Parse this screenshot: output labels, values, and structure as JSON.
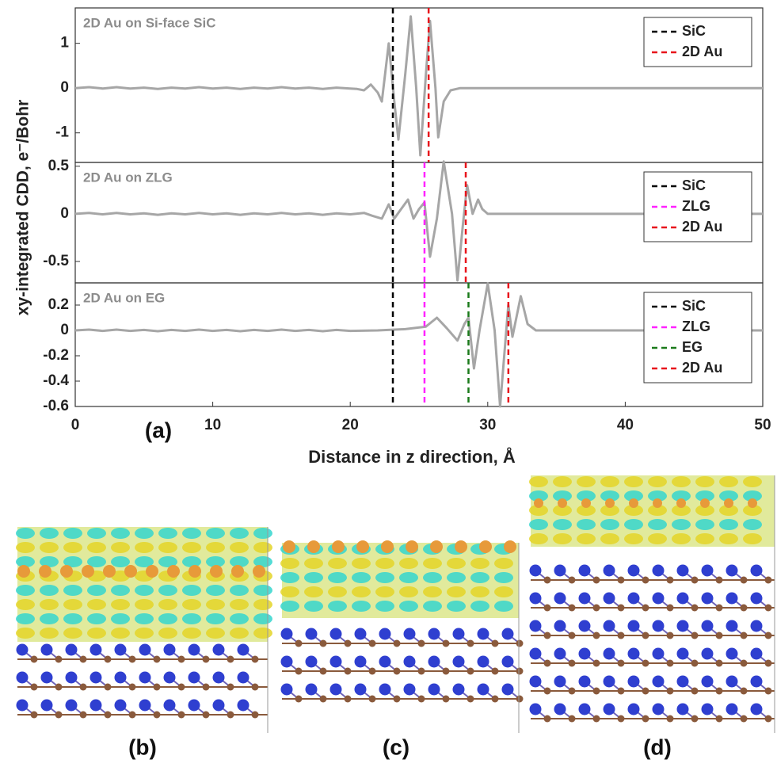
{
  "chart_data": [
    {
      "type": "line",
      "annotation": "2D Au on Si-face SiC",
      "legend": "upper right",
      "xlim": [
        0,
        50
      ],
      "ylim": [
        -1.66,
        1.79
      ],
      "yticks": [
        -1,
        0,
        1
      ],
      "x": [
        0,
        1,
        2,
        3,
        4,
        5,
        6,
        7,
        8,
        9,
        10,
        11,
        12,
        13,
        14,
        15,
        16,
        17,
        18,
        19,
        20,
        20.5,
        21,
        21.5,
        22,
        22.3,
        22.8,
        23.2,
        23.5,
        24,
        24.4,
        24.8,
        25.1,
        25.5,
        25.8,
        26.2,
        26.4,
        26.8,
        27.3,
        28,
        30,
        35,
        40,
        45,
        50
      ],
      "series": [
        {
          "color": "#a6a6a6",
          "values": [
            0,
            0.02,
            -0.01,
            0.02,
            -0.01,
            0.01,
            -0.02,
            0.01,
            -0.01,
            0.02,
            -0.01,
            0.01,
            -0.02,
            0.01,
            -0.01,
            0.02,
            -0.01,
            0.01,
            -0.02,
            0.01,
            -0.01,
            -0.02,
            -0.05,
            0.08,
            -0.1,
            -0.3,
            1.0,
            -0.3,
            -1.15,
            0.3,
            1.6,
            0,
            -1.5,
            0.3,
            1.5,
            0,
            -1.1,
            -0.3,
            -0.05,
            0,
            0,
            0,
            0,
            0,
            0
          ]
        }
      ],
      "vlines": [
        {
          "name": "SiC",
          "color": "#000000",
          "x": 23.1
        },
        {
          "name": "2D Au",
          "color": "#e8141c",
          "x": 25.7
        }
      ]
    },
    {
      "type": "line",
      "annotation": "2D Au on ZLG",
      "legend": "upper right",
      "xlim": [
        0,
        50
      ],
      "ylim": [
        -0.725,
        0.54
      ],
      "yticks": [
        -0.5,
        0,
        0.5
      ],
      "ylabel": "xy-integrated CDD, e⁻/Bohr",
      "x": [
        0,
        1,
        2,
        3,
        4,
        5,
        6,
        7,
        8,
        9,
        10,
        11,
        12,
        13,
        14,
        15,
        16,
        17,
        18,
        19,
        20,
        21,
        21.6,
        22.3,
        22.8,
        23.2,
        23.7,
        24.2,
        24.6,
        25,
        25.4,
        25.8,
        26.3,
        26.8,
        27.4,
        27.8,
        28.2,
        28.5,
        28.9,
        29.3,
        29.6,
        30,
        35,
        40,
        45,
        50
      ],
      "series": [
        {
          "color": "#a6a6a6",
          "values": [
            0,
            0.01,
            -0.005,
            0.01,
            -0.005,
            0.005,
            -0.01,
            0.005,
            -0.005,
            0.01,
            -0.005,
            0.005,
            -0.01,
            0.005,
            -0.005,
            0.01,
            -0.005,
            0.005,
            -0.01,
            0.005,
            -0.005,
            0.01,
            -0.02,
            -0.05,
            0.1,
            -0.05,
            0.05,
            0.15,
            -0.05,
            0.05,
            0.12,
            -0.45,
            -0.05,
            0.55,
            0,
            -0.7,
            -0.1,
            0.3,
            0,
            0.15,
            0.05,
            0,
            0,
            0,
            0,
            0
          ]
        }
      ],
      "vlines": [
        {
          "name": "SiC",
          "color": "#000000",
          "x": 23.1
        },
        {
          "name": "ZLG",
          "color": "#ff22ff",
          "x": 25.4
        },
        {
          "name": "2D Au",
          "color": "#e8141c",
          "x": 28.4
        }
      ]
    },
    {
      "type": "line",
      "annotation": "2D Au on EG",
      "legend": "upper right",
      "xlim": [
        0,
        50
      ],
      "ylim": [
        -0.6,
        0.375
      ],
      "yticks": [
        -0.6,
        -0.4,
        -0.2,
        0,
        0.2
      ],
      "xticks": [
        0,
        10,
        20,
        30,
        40,
        50
      ],
      "xlabel": "Distance in z direction, Å",
      "x": [
        0,
        1,
        2,
        3,
        4,
        5,
        6,
        7,
        8,
        9,
        10,
        11,
        12,
        13,
        14,
        15,
        16,
        17,
        18,
        19,
        20,
        22,
        24,
        25.5,
        26.3,
        27,
        27.8,
        28.3,
        28.6,
        29,
        29.4,
        30,
        30.5,
        30.9,
        31.5,
        31.8,
        32.4,
        32.9,
        33.5,
        35,
        40,
        45,
        50
      ],
      "series": [
        {
          "color": "#a6a6a6",
          "values": [
            0,
            0.006,
            -0.004,
            0.006,
            -0.004,
            0.004,
            -0.006,
            0.004,
            -0.004,
            0.006,
            -0.004,
            0.004,
            -0.006,
            0.004,
            -0.004,
            0.006,
            -0.004,
            0.004,
            -0.006,
            0.004,
            -0.004,
            0,
            0.01,
            0.03,
            0.1,
            0.02,
            -0.08,
            0.05,
            0.1,
            -0.3,
            0,
            0.37,
            0,
            -0.6,
            0.2,
            -0.05,
            0.27,
            0.05,
            0,
            0,
            0,
            0,
            0
          ]
        }
      ],
      "vlines": [
        {
          "name": "SiC",
          "color": "#000000",
          "x": 23.1
        },
        {
          "name": "ZLG",
          "color": "#ff22ff",
          "x": 25.4
        },
        {
          "name": "EG",
          "color": "#1a7a1a",
          "x": 28.6
        },
        {
          "name": "2D Au",
          "color": "#e8141c",
          "x": 31.5
        }
      ]
    }
  ],
  "figure": {
    "panel_labels": [
      "(a)",
      "(b)",
      "(c)",
      "(d)"
    ]
  }
}
